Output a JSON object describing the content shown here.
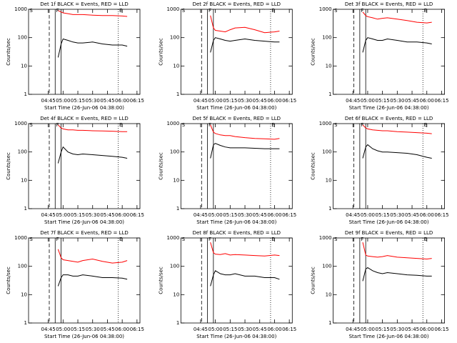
{
  "chart_data": [
    {
      "type": "line",
      "title": "Det 1f BLACK = Events, RED = LLD",
      "xlabel": "Start Time (26-Jun-06 04:38:00)",
      "ylabel": "Counts/sec",
      "log_y": true,
      "xlim": [
        "04:25",
        "06:18"
      ],
      "xticks": [
        "04:45",
        "05:00",
        "05:15",
        "05:30",
        "05:45",
        "06:00",
        "06:15"
      ],
      "ylim": [
        1,
        1000
      ],
      "yticks": [
        1,
        10,
        100,
        1000
      ],
      "vlines": [
        {
          "x": "04:46",
          "style": "dashed"
        },
        {
          "x": "04:52",
          "style": "solid"
        },
        {
          "x": "04:58",
          "style": "solid"
        },
        {
          "x": "05:56",
          "style": "dotted"
        }
      ],
      "annotations": [
        {
          "text": "S",
          "x": "04:26"
        },
        {
          "text": "F",
          "x": "04:53"
        },
        {
          "text": "E",
          "x": "05:57"
        }
      ],
      "x": [
        "04:55",
        "04:58",
        "05:00",
        "05:05",
        "05:10",
        "05:15",
        "05:20",
        "05:30",
        "05:40",
        "05:50",
        "06:00",
        "06:05"
      ],
      "series": [
        {
          "color": "#ff0000",
          "values": [
            900,
            800,
            750,
            700,
            650,
            650,
            650,
            620,
            600,
            600,
            580,
            560
          ]
        },
        {
          "color": "#000000",
          "values": [
            20,
            60,
            90,
            80,
            70,
            65,
            65,
            70,
            60,
            55,
            55,
            50
          ]
        }
      ]
    },
    {
      "type": "line",
      "title": "Det 2f BLACK = Events, RED = LLD",
      "xlabel": "Start Time (26-Jun-06 04:38:00)",
      "ylabel": "Counts/sec",
      "log_y": true,
      "xlim": [
        "04:25",
        "06:18"
      ],
      "xticks": [
        "04:45",
        "05:00",
        "05:15",
        "05:30",
        "05:45",
        "06:00",
        "06:15"
      ],
      "ylim": [
        1,
        1000
      ],
      "yticks": [
        1,
        10,
        100,
        1000
      ],
      "vlines": [
        {
          "x": "04:46",
          "style": "dashed"
        },
        {
          "x": "04:52",
          "style": "solid"
        },
        {
          "x": "04:58",
          "style": "solid"
        },
        {
          "x": "05:56",
          "style": "dotted"
        }
      ],
      "annotations": [
        {
          "text": "S",
          "x": "04:26"
        },
        {
          "text": "F",
          "x": "04:53"
        },
        {
          "text": "E",
          "x": "05:57"
        }
      ],
      "x": [
        "04:55",
        "04:58",
        "05:00",
        "05:05",
        "05:10",
        "05:15",
        "05:20",
        "05:30",
        "05:40",
        "05:50",
        "06:00",
        "06:05"
      ],
      "series": [
        {
          "color": "#ff0000",
          "values": [
            600,
            220,
            180,
            170,
            160,
            190,
            220,
            230,
            190,
            150,
            160,
            170
          ]
        },
        {
          "color": "#000000",
          "values": [
            30,
            80,
            100,
            90,
            80,
            75,
            80,
            90,
            80,
            75,
            70,
            70
          ]
        }
      ]
    },
    {
      "type": "line",
      "title": "Det 3f BLACK = Events, RED = LLD",
      "xlabel": "Start Time (26-Jun-06 04:38:00)",
      "ylabel": "Counts/sec",
      "log_y": true,
      "xlim": [
        "04:25",
        "06:18"
      ],
      "xticks": [
        "04:45",
        "05:00",
        "05:15",
        "05:30",
        "05:45",
        "06:00",
        "06:15"
      ],
      "ylim": [
        1,
        1000
      ],
      "yticks": [
        1,
        10,
        100,
        1000
      ],
      "vlines": [
        {
          "x": "04:46",
          "style": "dashed"
        },
        {
          "x": "04:52",
          "style": "solid"
        },
        {
          "x": "04:58",
          "style": "solid"
        },
        {
          "x": "05:56",
          "style": "dotted"
        }
      ],
      "annotations": [
        {
          "text": "S",
          "x": "04:26"
        },
        {
          "text": "F",
          "x": "04:53"
        },
        {
          "text": "E",
          "x": "05:57"
        }
      ],
      "x": [
        "04:55",
        "04:58",
        "05:00",
        "05:05",
        "05:10",
        "05:15",
        "05:20",
        "05:30",
        "05:40",
        "05:50",
        "06:00",
        "06:05"
      ],
      "series": [
        {
          "color": "#ff0000",
          "values": [
            800,
            600,
            550,
            500,
            450,
            480,
            500,
            450,
            400,
            350,
            330,
            350
          ]
        },
        {
          "color": "#000000",
          "values": [
            30,
            80,
            100,
            90,
            80,
            80,
            90,
            80,
            70,
            70,
            65,
            60
          ]
        }
      ]
    },
    {
      "type": "line",
      "title": "Det 4f BLACK = Events, RED = LLD",
      "xlabel": "Start Time (26-Jun-06 04:38:00)",
      "ylabel": "Counts/sec",
      "log_y": true,
      "xlim": [
        "04:25",
        "06:18"
      ],
      "xticks": [
        "04:45",
        "05:00",
        "05:15",
        "05:30",
        "05:45",
        "06:00",
        "06:15"
      ],
      "ylim": [
        1,
        1000
      ],
      "yticks": [
        1,
        10,
        100,
        1000
      ],
      "vlines": [
        {
          "x": "04:46",
          "style": "dashed"
        },
        {
          "x": "04:52",
          "style": "solid"
        },
        {
          "x": "04:58",
          "style": "solid"
        },
        {
          "x": "05:56",
          "style": "dotted"
        }
      ],
      "annotations": [
        {
          "text": "S",
          "x": "04:26"
        },
        {
          "text": "F",
          "x": "04:53"
        },
        {
          "text": "E",
          "x": "05:57"
        }
      ],
      "x": [
        "04:55",
        "04:58",
        "05:00",
        "05:05",
        "05:10",
        "05:15",
        "05:20",
        "05:30",
        "05:40",
        "05:50",
        "06:00",
        "06:05"
      ],
      "series": [
        {
          "color": "#ff0000",
          "values": [
            900,
            700,
            650,
            600,
            600,
            580,
            580,
            560,
            550,
            540,
            520,
            520
          ]
        },
        {
          "color": "#000000",
          "values": [
            40,
            100,
            150,
            100,
            85,
            80,
            85,
            80,
            75,
            70,
            65,
            60
          ]
        }
      ]
    },
    {
      "type": "line",
      "title": "Det 5f BLACK = Events, RED = LLD",
      "xlabel": "Start Time (26-Jun-06 04:38:00)",
      "ylabel": "Counts/sec",
      "log_y": true,
      "xlim": [
        "04:25",
        "06:18"
      ],
      "xticks": [
        "04:45",
        "05:00",
        "05:15",
        "05:30",
        "05:45",
        "06:00",
        "06:15"
      ],
      "ylim": [
        1,
        1000
      ],
      "yticks": [
        1,
        10,
        100,
        1000
      ],
      "vlines": [
        {
          "x": "04:46",
          "style": "dashed"
        },
        {
          "x": "04:52",
          "style": "solid"
        },
        {
          "x": "04:58",
          "style": "solid"
        },
        {
          "x": "05:56",
          "style": "dotted"
        }
      ],
      "annotations": [
        {
          "text": "S",
          "x": "04:26"
        },
        {
          "text": "F",
          "x": "04:53"
        },
        {
          "text": "E",
          "x": "05:57"
        }
      ],
      "x": [
        "04:55",
        "04:58",
        "05:00",
        "05:05",
        "05:10",
        "05:15",
        "05:20",
        "05:30",
        "05:40",
        "05:50",
        "06:00",
        "06:05"
      ],
      "series": [
        {
          "color": "#ff0000",
          "values": [
            900,
            500,
            450,
            400,
            380,
            380,
            350,
            320,
            300,
            290,
            280,
            300
          ]
        },
        {
          "color": "#000000",
          "values": [
            60,
            180,
            200,
            170,
            150,
            140,
            140,
            140,
            135,
            130,
            130,
            130
          ]
        }
      ]
    },
    {
      "type": "line",
      "title": "Det 6f BLACK = Events, RED = LLD",
      "xlabel": "Start Time (26-Jun-06 04:38:00)",
      "ylabel": "Counts/sec",
      "log_y": true,
      "xlim": [
        "04:25",
        "06:18"
      ],
      "xticks": [
        "04:45",
        "05:00",
        "05:15",
        "05:30",
        "05:45",
        "06:00",
        "06:15"
      ],
      "ylim": [
        1,
        1000
      ],
      "yticks": [
        1,
        10,
        100,
        1000
      ],
      "vlines": [
        {
          "x": "04:46",
          "style": "dashed"
        },
        {
          "x": "04:52",
          "style": "solid"
        },
        {
          "x": "04:58",
          "style": "solid"
        },
        {
          "x": "05:56",
          "style": "dotted"
        }
      ],
      "annotations": [
        {
          "text": "S",
          "x": "04:26"
        },
        {
          "text": "F",
          "x": "04:53"
        },
        {
          "text": "E",
          "x": "05:57"
        }
      ],
      "x": [
        "04:55",
        "04:58",
        "05:00",
        "05:05",
        "05:10",
        "05:15",
        "05:20",
        "05:30",
        "05:40",
        "05:50",
        "06:00",
        "06:05"
      ],
      "series": [
        {
          "color": "#ff0000",
          "values": [
            900,
            700,
            650,
            600,
            580,
            560,
            560,
            520,
            500,
            480,
            460,
            440
          ]
        },
        {
          "color": "#000000",
          "values": [
            60,
            150,
            180,
            130,
            110,
            100,
            100,
            95,
            90,
            80,
            65,
            60
          ]
        }
      ]
    },
    {
      "type": "line",
      "title": "Det 7f BLACK = Events, RED = LLD",
      "xlabel": "Start Time (26-Jun-06 04:38:00)",
      "ylabel": "Counts/sec",
      "log_y": true,
      "xlim": [
        "04:25",
        "06:18"
      ],
      "xticks": [
        "04:45",
        "05:00",
        "05:15",
        "05:30",
        "05:45",
        "06:00",
        "06:15"
      ],
      "ylim": [
        1,
        1000
      ],
      "yticks": [
        1,
        10,
        100,
        1000
      ],
      "vlines": [
        {
          "x": "04:46",
          "style": "dashed"
        },
        {
          "x": "04:52",
          "style": "solid"
        },
        {
          "x": "04:58",
          "style": "solid"
        },
        {
          "x": "05:56",
          "style": "dotted"
        }
      ],
      "annotations": [
        {
          "text": "S",
          "x": "04:26"
        },
        {
          "text": "F",
          "x": "04:53"
        },
        {
          "text": "E",
          "x": "05:57"
        }
      ],
      "x": [
        "04:55",
        "04:58",
        "05:00",
        "05:05",
        "05:10",
        "05:15",
        "05:20",
        "05:30",
        "05:40",
        "05:50",
        "06:00",
        "06:05"
      ],
      "series": [
        {
          "color": "#ff0000",
          "values": [
            400,
            200,
            170,
            160,
            150,
            140,
            160,
            180,
            150,
            130,
            140,
            160
          ]
        },
        {
          "color": "#000000",
          "values": [
            20,
            40,
            50,
            50,
            45,
            45,
            50,
            45,
            40,
            40,
            38,
            35
          ]
        }
      ]
    },
    {
      "type": "line",
      "title": "Det 8f BLACK = Events, RED = LLD",
      "xlabel": "Start Time (26-Jun-06 04:38:00)",
      "ylabel": "Counts/sec",
      "log_y": true,
      "xlim": [
        "04:25",
        "06:18"
      ],
      "xticks": [
        "04:45",
        "05:00",
        "05:15",
        "05:30",
        "05:45",
        "06:00",
        "06:15"
      ],
      "ylim": [
        1,
        1000
      ],
      "yticks": [
        1,
        10,
        100,
        1000
      ],
      "vlines": [
        {
          "x": "04:46",
          "style": "dashed"
        },
        {
          "x": "04:52",
          "style": "solid"
        },
        {
          "x": "04:58",
          "style": "solid"
        },
        {
          "x": "05:56",
          "style": "dotted"
        }
      ],
      "annotations": [
        {
          "text": "S",
          "x": "04:26"
        },
        {
          "text": "F",
          "x": "04:53"
        },
        {
          "text": "E",
          "x": "05:57"
        }
      ],
      "x": [
        "04:55",
        "04:58",
        "05:00",
        "05:05",
        "05:10",
        "05:15",
        "05:20",
        "05:30",
        "05:40",
        "05:50",
        "06:00",
        "06:05"
      ],
      "series": [
        {
          "color": "#ff0000",
          "values": [
            700,
            300,
            270,
            260,
            280,
            250,
            260,
            250,
            240,
            230,
            250,
            240
          ]
        },
        {
          "color": "#000000",
          "values": [
            20,
            50,
            70,
            55,
            50,
            50,
            55,
            45,
            45,
            40,
            40,
            35
          ]
        }
      ]
    },
    {
      "type": "line",
      "title": "Det 9f BLACK = Events, RED = LLD",
      "xlabel": "Start Time (26-Jun-06 04:38:00)",
      "ylabel": "Counts/sec",
      "log_y": true,
      "xlim": [
        "04:25",
        "06:18"
      ],
      "xticks": [
        "04:45",
        "05:00",
        "05:15",
        "05:30",
        "05:45",
        "06:00",
        "06:15"
      ],
      "ylim": [
        1,
        1000
      ],
      "yticks": [
        1,
        10,
        100,
        1000
      ],
      "vlines": [
        {
          "x": "04:46",
          "style": "dashed"
        },
        {
          "x": "04:52",
          "style": "solid"
        },
        {
          "x": "04:58",
          "style": "solid"
        },
        {
          "x": "05:56",
          "style": "dotted"
        }
      ],
      "annotations": [
        {
          "text": "S",
          "x": "04:26"
        },
        {
          "text": "F",
          "x": "04:53"
        },
        {
          "text": "E",
          "x": "05:57"
        }
      ],
      "x": [
        "04:55",
        "04:58",
        "05:00",
        "05:05",
        "05:10",
        "05:15",
        "05:20",
        "05:30",
        "05:40",
        "05:50",
        "06:00",
        "06:05"
      ],
      "series": [
        {
          "color": "#ff0000",
          "values": [
            700,
            250,
            230,
            220,
            210,
            220,
            240,
            210,
            200,
            190,
            180,
            190
          ]
        },
        {
          "color": "#000000",
          "values": [
            30,
            80,
            90,
            70,
            60,
            55,
            60,
            55,
            50,
            48,
            45,
            45
          ]
        }
      ]
    }
  ]
}
